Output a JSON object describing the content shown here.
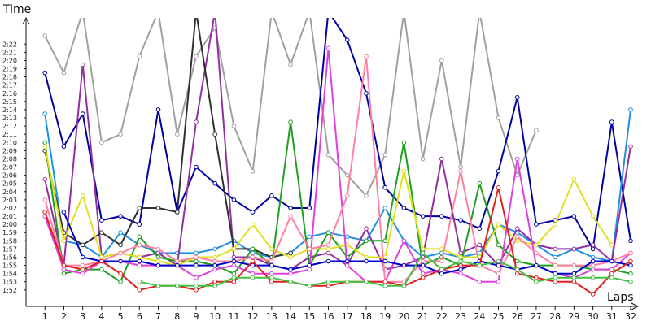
{
  "chart_data": {
    "type": "line",
    "ylabel": "Time",
    "xlabel": "Laps",
    "x": [
      1,
      2,
      3,
      4,
      5,
      6,
      7,
      8,
      9,
      10,
      11,
      12,
      13,
      14,
      15,
      16,
      17,
      18,
      19,
      20,
      21,
      22,
      23,
      24,
      25,
      26,
      27,
      28,
      29,
      30,
      31,
      32
    ],
    "xlim": [
      0,
      32.3
    ],
    "ylim": [
      "1:50",
      "2:25"
    ],
    "yticks": [
      "1:52",
      "1:53",
      "1:54",
      "1:55",
      "1:56",
      "1:57",
      "1:58",
      "1:59",
      "2:00",
      "2:01",
      "2:02",
      "2:03",
      "2:04",
      "2:05",
      "2:06",
      "2:07",
      "2:08",
      "2:09",
      "2:10",
      "2:11",
      "2:12",
      "2:13",
      "2:14",
      "2:15",
      "2:16",
      "2:17",
      "2:18",
      "2:19",
      "2:20",
      "2:21",
      "2:22"
    ],
    "grid": false,
    "legend": "none",
    "series": [
      {
        "color": "#a0a0a0",
        "values": [
          "2:23",
          "2:18.5",
          "2:27",
          "2:10",
          "2:11",
          "2:20.5",
          "2:27",
          "2:11",
          "2:20.5",
          "2:24",
          "2:12",
          "2:06.5",
          "2:26",
          "2:19.5",
          "2:26",
          "2:08.5",
          "2:06",
          "2:03.5",
          "2:08.5",
          "2:26",
          "2:08",
          "2:20",
          "2:07",
          "2:26",
          "2:13",
          "2:06",
          "2:11.5",
          null,
          null,
          null,
          null,
          null
        ]
      },
      {
        "color": "#0000a0",
        "values": [
          "2:18.5",
          "2:09.5",
          "2:13.5",
          "2:00.5",
          "2:01",
          "2:00",
          "2:14",
          "2:01.5",
          "2:07",
          "2:05",
          "2:03",
          "2:01.5",
          "2:03.5",
          "2:02",
          "2:02",
          "2:27",
          "2:22.5",
          "2:16",
          "2:04.5",
          "2:02",
          "2:01",
          "2:01",
          "2:00.5",
          "1:59.5",
          "2:06.5",
          "2:15.5",
          "2:00",
          "2:00.5",
          "2:01",
          "1:57",
          "2:12.5",
          "1:58"
        ]
      },
      {
        "color": "#2090e0",
        "values": [
          "2:13.5",
          "1:58",
          "1:57.5",
          "1:56",
          "1:59",
          "1:57.5",
          "1:56.5",
          "1:56.5",
          "1:56.5",
          "1:57",
          "1:58",
          "1:56.5",
          "1:56",
          "1:56.5",
          "1:58.5",
          "1:59",
          "1:58.5",
          "1:58",
          "2:02",
          "1:58",
          "1:56",
          "1:56.5",
          "1:56",
          "1:56.5",
          "2:00",
          "1:59",
          "1:57.5",
          "1:56",
          "1:57",
          "1:56",
          "1:55.5",
          "2:14"
        ]
      },
      {
        "color": "#9030a0",
        "values": [
          "2:05.5",
          "1:55",
          "2:19.5",
          "1:56",
          "1:56.5",
          "1:56",
          "1:56.5",
          "1:55",
          "2:12.5",
          "2:27",
          "1:56",
          "1:56",
          "1:55",
          "1:54.5",
          "1:56",
          "1:56.5",
          "1:55",
          "1:59.5",
          "1:54.5",
          "1:55",
          "1:56",
          "2:08",
          "1:56.5",
          "1:57.5",
          "1:55",
          "1:59.5",
          "1:57.5",
          "1:57",
          "1:57",
          "1:57.5",
          "1:55.5",
          "2:09.5"
        ]
      },
      {
        "color": "#303030",
        "values": [
          "2:09",
          "1:59",
          "1:57.5",
          "1:59",
          "1:57.5",
          "2:02",
          "2:02",
          "2:01.5",
          "2:27",
          "2:11",
          "1:57",
          "1:57",
          "1:56",
          "1:56.5",
          null,
          null,
          null,
          null,
          null,
          null,
          null,
          null,
          null,
          null,
          null,
          null,
          null,
          null,
          null,
          null,
          null,
          null
        ]
      },
      {
        "color": "#20a020",
        "values": [
          "2:10",
          "1:54",
          "1:54.5",
          "1:54.5",
          "1:53",
          "1:58.5",
          "1:56",
          "1:55.5",
          "1:55.5",
          "1:55",
          "1:54",
          "1:57",
          "1:55",
          "2:12.5",
          "1:55",
          "1:59",
          "1:56",
          "1:58",
          "1:58",
          "2:10",
          "1:55",
          "1:56",
          "1:55",
          "2:05",
          "1:57.5",
          "1:55.5",
          "1:55",
          "1:55",
          "1:55",
          "1:54.5",
          "1:54.5",
          "1:54"
        ]
      },
      {
        "color": "#e0e020",
        "values": [
          "2:09.5",
          "1:58",
          "2:03.5",
          "1:56",
          "1:56.5",
          "1:56",
          "1:55.5",
          "1:55",
          "1:56",
          "1:56",
          "1:57",
          "2:00",
          "1:57",
          "1:56",
          "1:57",
          "1:57",
          "1:57.5",
          "1:56",
          "1:56",
          "2:06.5",
          "1:57",
          "1:57",
          "1:56",
          "1:56",
          "2:00",
          "1:58",
          "1:57.5",
          "2:00",
          "2:05.5",
          "2:01",
          "1:57.5",
          null
        ]
      },
      {
        "color": "#e040e0",
        "values": [
          "2:01",
          "1:54.5",
          "1:54",
          "1:55.5",
          "1:55.5",
          "1:55",
          "1:55",
          "1:55",
          "1:53.5",
          "1:54.5",
          "1:55",
          "1:54",
          "1:54",
          "1:54",
          "1:54.5",
          "2:21.5",
          "1:55",
          "1:53",
          "1:53",
          "1:58",
          "1:54",
          "1:54.5",
          "1:54",
          "1:53",
          "1:53",
          "2:08",
          "1:55",
          "1:54",
          "1:53.5",
          "1:54.5",
          "1:54.5",
          "1:56.5"
        ]
      },
      {
        "color": "#ff80a0",
        "values": [
          "2:03",
          "1:55",
          "1:55",
          "1:55.5",
          "1:56.5",
          "1:57.5",
          "1:57",
          "1:55.5",
          "1:56",
          "1:55.5",
          "1:55.5",
          "1:56",
          "1:55.5",
          "2:01",
          "1:57",
          "1:57.5",
          "2:03.5",
          "2:20.5",
          "1:53",
          "1:53",
          "1:55.5",
          "1:55.5",
          "2:06.5",
          "1:55",
          "1:54",
          "1:58.5",
          "1:56.5",
          "1:55",
          "1:55",
          "1:55",
          "1:55.5",
          "1:56.5"
        ]
      },
      {
        "color": "#0000cc",
        "values": [
          null,
          "2:01.5",
          "1:56",
          "1:55.5",
          "1:55.5",
          "1:55.5",
          "1:55",
          "1:55",
          "1:55",
          "1:55",
          "1:55.5",
          "1:55",
          "1:55",
          "1:54.5",
          "1:55",
          "1:55.5",
          "1:55.5",
          "1:55.5",
          "1:55.5",
          "1:55",
          "1:55",
          "1:54",
          "1:54.5",
          "1:55.5",
          "1:55",
          "1:54.5",
          "1:55",
          "1:54",
          "1:54",
          "1:55.5",
          "1:55.5",
          "1:55"
        ]
      },
      {
        "color": "#e02020",
        "values": [
          "2:01.5",
          "1:55",
          "1:54.5",
          "1:55.5",
          "1:54",
          "1:52",
          "1:52.5",
          "1:52.5",
          "1:52",
          "1:53",
          "1:53",
          "1:55.5",
          "1:53",
          "1:53",
          "1:52.5",
          "1:52.5",
          "1:53",
          "1:53",
          "1:53",
          "1:52.5",
          "1:53.5",
          "1:54.5",
          "1:55",
          "1:55",
          "2:04.5",
          "1:54",
          "1:53.5",
          "1:53",
          "1:53",
          "1:51.5",
          "1:54",
          "1:55.5"
        ]
      },
      {
        "color": "#40c040",
        "values": [
          null,
          null,
          null,
          null,
          null,
          "1:53",
          "1:52.5",
          "1:52.5",
          "1:52.5",
          "1:52.5",
          "1:53.5",
          "1:53.5",
          "1:53.5",
          "1:53",
          "1:52.5",
          "1:53",
          "1:53",
          "1:53",
          "1:52.5",
          "1:52.5",
          "1:56.5",
          "1:54.5",
          "1:55.5",
          "1:55",
          "1:55.5",
          "1:54.5",
          "1:53",
          "1:53.5",
          "1:53.5",
          "1:53.5",
          "1:53.5",
          "1:53"
        ]
      }
    ]
  }
}
